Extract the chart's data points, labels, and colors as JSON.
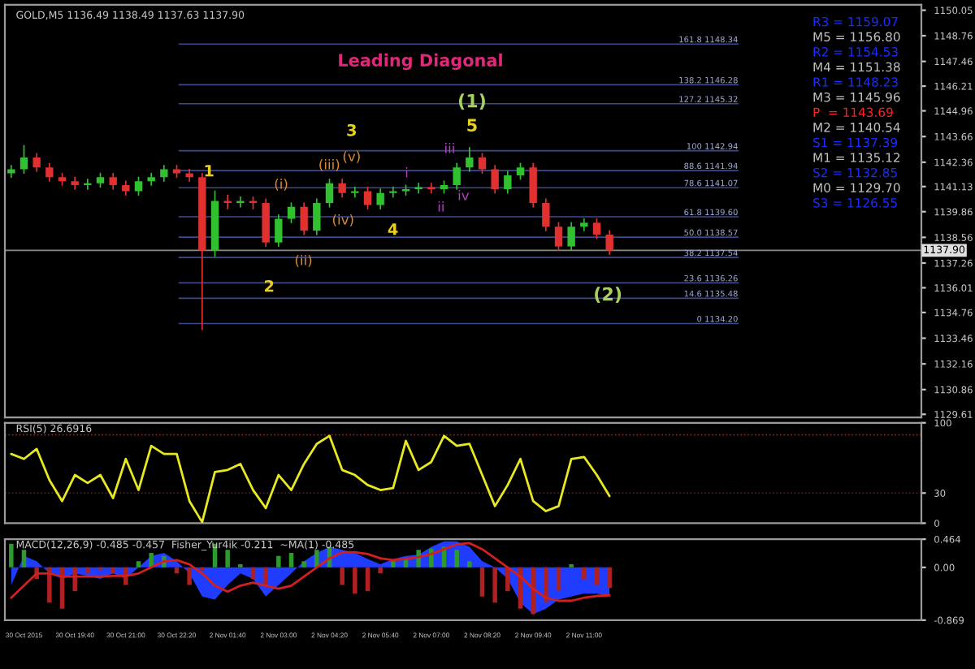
{
  "chart_data": [
    {
      "type": "candlestick",
      "title": "GOLD,M5 1136.49 1138.49 1137.63 1137.90",
      "categories": [
        null,
        null,
        null,
        null,
        null,
        null,
        null,
        null,
        null,
        null,
        null,
        null,
        null,
        null,
        null,
        null,
        null,
        null,
        null,
        null,
        null,
        null,
        null,
        null,
        null,
        null,
        null,
        null,
        null,
        null,
        null,
        null,
        null,
        null,
        null,
        null,
        null,
        null,
        null,
        null,
        null,
        null,
        null,
        null,
        null,
        null,
        null,
        null,
        null,
        null,
        null,
        null,
        null,
        null,
        null,
        null,
        null,
        null,
        null,
        null,
        null,
        null,
        null,
        null,
        null,
        null,
        null,
        null,
        null,
        null,
        null,
        null
      ],
      "tick_labels": "y",
      "ohlc": [
        [
          1141.8,
          1142.2,
          1141.6,
          1142.0
        ],
        [
          1142.0,
          1143.2,
          1141.8,
          1142.6
        ],
        [
          1142.6,
          1142.8,
          1141.9,
          1142.1
        ],
        [
          1142.1,
          1142.3,
          1141.4,
          1141.6
        ],
        [
          1141.6,
          1141.8,
          1141.2,
          1141.4
        ],
        [
          1141.4,
          1141.6,
          1141.0,
          1141.2
        ],
        [
          1141.2,
          1141.5,
          1141.0,
          1141.3
        ],
        [
          1141.3,
          1141.8,
          1141.1,
          1141.6
        ],
        [
          1141.6,
          1141.8,
          1141.0,
          1141.2
        ],
        [
          1141.2,
          1141.4,
          1140.7,
          1140.9
        ],
        [
          1140.9,
          1141.6,
          1140.7,
          1141.4
        ],
        [
          1141.4,
          1141.8,
          1141.2,
          1141.6
        ],
        [
          1141.6,
          1142.2,
          1141.4,
          1142.0
        ],
        [
          1142.0,
          1142.2,
          1141.6,
          1141.8
        ],
        [
          1141.8,
          1142.0,
          1141.4,
          1141.6
        ],
        [
          1141.6,
          1141.8,
          1133.9,
          1137.9
        ],
        [
          1137.9,
          1140.9,
          1137.6,
          1140.4
        ],
        [
          1140.4,
          1140.7,
          1140.0,
          1140.3
        ],
        [
          1140.3,
          1140.6,
          1140.1,
          1140.4
        ],
        [
          1140.4,
          1140.6,
          1140.0,
          1140.3
        ],
        [
          1140.3,
          1140.5,
          1138.1,
          1138.3
        ],
        [
          1138.3,
          1139.7,
          1138.1,
          1139.5
        ],
        [
          1139.5,
          1140.3,
          1139.3,
          1140.1
        ],
        [
          1140.1,
          1140.3,
          1138.7,
          1138.9
        ],
        [
          1138.9,
          1140.5,
          1138.7,
          1140.3
        ],
        [
          1140.3,
          1141.5,
          1140.1,
          1141.3
        ],
        [
          1141.3,
          1141.5,
          1140.6,
          1140.8
        ],
        [
          1140.8,
          1141.1,
          1140.6,
          1140.9
        ],
        [
          1140.9,
          1141.1,
          1140.0,
          1140.2
        ],
        [
          1140.2,
          1141.0,
          1140.0,
          1140.8
        ],
        [
          1140.8,
          1141.1,
          1140.6,
          1140.9
        ],
        [
          1140.9,
          1141.2,
          1140.7,
          1141.0
        ],
        [
          1141.0,
          1141.3,
          1140.8,
          1141.1
        ],
        [
          1141.1,
          1141.3,
          1140.8,
          1141.0
        ],
        [
          1141.0,
          1141.4,
          1140.8,
          1141.2
        ],
        [
          1141.2,
          1142.3,
          1141.0,
          1142.1
        ],
        [
          1142.1,
          1143.1,
          1141.9,
          1142.6
        ],
        [
          1142.6,
          1142.8,
          1141.8,
          1142.0
        ],
        [
          1142.0,
          1142.2,
          1140.8,
          1141.0
        ],
        [
          1141.0,
          1141.9,
          1140.8,
          1141.7
        ],
        [
          1141.7,
          1142.3,
          1141.5,
          1142.1
        ],
        [
          1142.1,
          1142.3,
          1140.1,
          1140.3
        ],
        [
          1140.3,
          1140.5,
          1138.9,
          1139.1
        ],
        [
          1139.1,
          1139.3,
          1137.9,
          1138.1
        ],
        [
          1138.1,
          1139.3,
          1137.9,
          1139.1
        ],
        [
          1139.1,
          1139.5,
          1138.9,
          1139.3
        ],
        [
          1139.3,
          1139.5,
          1138.5,
          1138.7
        ],
        [
          1138.7,
          1138.9,
          1137.7,
          1137.9
        ],
        null,
        null,
        null,
        null,
        null,
        null,
        null,
        null,
        null,
        null,
        null,
        null,
        null,
        null,
        null,
        null,
        null,
        null,
        null,
        null,
        null,
        null,
        null,
        null
      ],
      "ylim": [
        1129.45,
        1150.33
      ],
      "yticks": [
        1129.61,
        1130.86,
        1132.16,
        1133.46,
        1134.76,
        1136.01,
        1137.26,
        1138.56,
        1139.86,
        1141.13,
        1142.36,
        1143.66,
        1144.96,
        1146.21,
        1147.46,
        1148.76,
        1150.05
      ],
      "ref_lines": [
        {
          "axis": "y",
          "value": 1148.34,
          "label": "161.8 1148.34",
          "color": "#3c4a8c"
        },
        {
          "axis": "y",
          "value": 1146.28,
          "label": "138.2 1146.28",
          "color": "#3c4a8c"
        },
        {
          "axis": "y",
          "value": 1145.32,
          "label": "127.2 1145.32",
          "color": "#3c4a8c"
        },
        {
          "axis": "y",
          "value": 1142.94,
          "label": "100 1142.94",
          "color": "#3c4a8c"
        },
        {
          "axis": "y",
          "value": 1141.94,
          "label": "88.6 1141.94",
          "color": "#3c4a8c"
        },
        {
          "axis": "y",
          "value": 1141.07,
          "label": "78.6 1141.07",
          "color": "#3c4a8c"
        },
        {
          "axis": "y",
          "value": 1139.6,
          "label": "61.8 1139.60",
          "color": "#3c4a8c"
        },
        {
          "axis": "y",
          "value": 1138.57,
          "label": "50.0 1138.57",
          "color": "#3c4a8c"
        },
        {
          "axis": "y",
          "value": 1137.54,
          "label": "38.2 1137.54",
          "color": "#3c4a8c"
        },
        {
          "axis": "y",
          "value": 1136.26,
          "label": "23.6 1136.26",
          "color": "#3c4a8c"
        },
        {
          "axis": "y",
          "value": 1135.48,
          "label": "14.6 1135.48",
          "color": "#3c4a8c"
        },
        {
          "axis": "y",
          "value": 1134.2,
          "label": "0 1134.20",
          "color": "#3c4a8c"
        },
        {
          "axis": "y",
          "value": 1137.9,
          "label": "1137.90",
          "color": "#8a8a8a"
        }
      ],
      "annotations": [
        "Leading Diagonal",
        "(1)",
        "5",
        "3",
        "1",
        "2",
        "4",
        "(2)",
        "(i)",
        "(ii)",
        "(iii)",
        "(iv)",
        "(v)",
        "i",
        "ii",
        "iii",
        "iv",
        "R3 = 1159.07",
        "M5 = 1156.80",
        "R2 = 1154.53",
        "M4 = 1151.38",
        "R1 = 1148.23",
        "M3 = 1145.96",
        "P  = 1143.69",
        "M2 = 1140.54",
        "S1 = 1137.39",
        "M1 = 1135.12",
        "S2 = 1132.85",
        "M0 = 1129.70",
        "S3 = 1126.55"
      ]
    },
    {
      "type": "line",
      "title": "RSI(5) 26.6916",
      "categories": [
        null,
        null,
        null,
        null,
        null,
        null,
        null,
        null,
        null,
        null,
        null,
        null,
        null,
        null,
        null,
        null,
        null,
        null,
        null,
        null,
        null,
        null,
        null,
        null,
        null,
        null,
        null,
        null,
        null,
        null,
        null,
        null,
        null,
        null,
        null,
        null,
        null,
        null,
        null,
        null,
        null,
        null,
        null,
        null,
        null,
        null,
        null,
        null,
        null,
        null,
        null,
        null,
        null,
        null,
        null,
        null,
        null,
        null,
        null,
        null,
        null,
        null,
        null,
        null,
        null,
        null,
        null,
        null,
        null,
        null,
        null,
        null
      ],
      "tick_labels": "y",
      "series": [
        {
          "color": "#e8e820",
          "values": [
            69,
            64,
            74,
            43,
            22,
            48,
            40,
            48,
            25,
            64,
            33,
            77,
            69,
            69,
            22,
            1,
            51,
            53,
            59,
            33,
            15,
            48,
            33,
            59,
            79,
            87,
            53,
            48,
            38,
            33,
            35,
            82,
            53,
            61,
            87,
            77,
            79,
            48,
            17,
            38,
            64,
            22,
            12,
            17,
            64,
            66,
            48,
            27,
            null,
            null,
            null,
            null,
            null,
            null,
            null,
            null,
            null,
            null,
            null,
            null,
            null,
            null,
            null,
            null,
            null,
            null,
            null,
            null,
            null,
            null,
            null,
            null
          ]
        }
      ],
      "ylim": [
        0,
        100
      ],
      "yticks": [
        0,
        30,
        100
      ],
      "ref_lines": [
        {
          "axis": "y",
          "value": 88,
          "color": "#a02020",
          "line_style": "dotted"
        },
        {
          "axis": "y",
          "value": 30,
          "color": "#6a2020",
          "line_style": "dotted"
        }
      ]
    },
    {
      "type": "bar",
      "title": "MACD(12,26,9) -0.485 -0.457  Fisher_Yur4ik -0.211  ~MA(1) -0.485",
      "categories": [
        null,
        "30 Oct 2015",
        null,
        null,
        null,
        "30 Oct 19:40",
        null,
        null,
        null,
        "30 Oct 21:00",
        null,
        null,
        null,
        "30 Oct 22:20",
        null,
        null,
        null,
        "2 Nov 01:40",
        null,
        null,
        null,
        "2 Nov 03:00",
        null,
        null,
        null,
        "2 Nov 04:20",
        null,
        null,
        null,
        "2 Nov 05:40",
        null,
        null,
        null,
        "2 Nov 07:00",
        null,
        null,
        null,
        "2 Nov 08:20",
        null,
        null,
        null,
        "2 Nov 09:40",
        null,
        null,
        null,
        "2 Nov 11:00",
        null,
        null,
        null,
        null,
        null,
        null,
        null,
        null,
        null,
        null,
        null,
        null,
        null,
        null,
        null,
        null,
        null,
        null,
        null,
        null,
        null,
        null,
        null,
        null,
        null,
        null
      ],
      "series": [
        {
          "type": "area",
          "color": "#1f3cff",
          "values": [
            -0.29,
            0.19,
            0.1,
            -0.1,
            -0.19,
            -0.1,
            -0.14,
            -0.19,
            -0.1,
            -0.19,
            0.0,
            0.19,
            0.24,
            0.1,
            -0.1,
            -0.48,
            -0.53,
            -0.29,
            -0.1,
            -0.19,
            -0.48,
            -0.29,
            -0.1,
            0.1,
            0.24,
            0.34,
            0.29,
            0.24,
            0.14,
            0.05,
            0.14,
            0.19,
            0.21,
            0.34,
            0.43,
            0.43,
            0.34,
            0.1,
            0.0,
            -0.19,
            -0.58,
            -0.77,
            -0.68,
            -0.53,
            -0.48,
            -0.43,
            -0.43,
            -0.48,
            null,
            null,
            null,
            null,
            null,
            null,
            null,
            null,
            null,
            null,
            null,
            null,
            null,
            null,
            null,
            null,
            null,
            null,
            null,
            null,
            null,
            null,
            null,
            null
          ]
        },
        {
          "type": "bar",
          "values": [
            0.39,
            0.29,
            -0.19,
            -0.58,
            -0.68,
            -0.39,
            -0.1,
            -0.05,
            -0.1,
            -0.29,
            0.1,
            0.24,
            0.19,
            -0.1,
            -0.29,
            -0.05,
            0.39,
            0.29,
            0.05,
            -0.19,
            -0.29,
            0.19,
            0.24,
            0.1,
            0.29,
            0.34,
            -0.29,
            -0.43,
            -0.39,
            -0.1,
            0.1,
            0.14,
            0.29,
            0.31,
            0.34,
            0.29,
            0.1,
            -0.48,
            -0.58,
            -0.39,
            -0.68,
            -0.77,
            -0.58,
            -0.39,
            0.05,
            -0.19,
            -0.29,
            -0.34,
            null,
            null,
            null,
            null,
            null,
            null,
            null,
            null,
            null,
            null,
            null,
            null,
            null,
            null,
            null,
            null,
            null,
            null,
            null,
            null,
            null,
            null,
            null,
            null
          ],
          "colors": [
            "#2e9a2e",
            "#2e9a2e",
            "#b02020",
            "#b02020",
            "#b02020",
            "#b02020",
            "#b02020",
            "#b02020",
            "#b02020",
            "#b02020",
            "#2e9a2e",
            "#2e9a2e",
            "#2e9a2e",
            "#b02020",
            "#b02020",
            "#b02020",
            "#2e9a2e",
            "#2e9a2e",
            "#2e9a2e",
            "#b02020",
            "#b02020",
            "#2e9a2e",
            "#2e9a2e",
            "#2e9a2e",
            "#2e9a2e",
            "#2e9a2e",
            "#b02020",
            "#b02020",
            "#b02020",
            "#b02020",
            "#2e9a2e",
            "#2e9a2e",
            "#2e9a2e",
            "#2e9a2e",
            "#2e9a2e",
            "#2e9a2e",
            "#2e9a2e",
            "#b02020",
            "#b02020",
            "#b02020",
            "#b02020",
            "#b02020",
            "#b02020",
            "#b02020",
            "#2e9a2e",
            "#b02020",
            "#b02020",
            "#b02020",
            null,
            null,
            null,
            null,
            null,
            null,
            null,
            null,
            null,
            null,
            null,
            null,
            null,
            null,
            null,
            null,
            null,
            null,
            null,
            null,
            null,
            null,
            null,
            null
          ]
        },
        {
          "type": "line",
          "color": "#d02020",
          "values": [
            -0.5,
            -0.3,
            -0.1,
            -0.1,
            -0.15,
            -0.15,
            -0.15,
            -0.15,
            -0.14,
            -0.14,
            -0.1,
            0.0,
            0.1,
            0.12,
            0.05,
            -0.1,
            -0.3,
            -0.4,
            -0.3,
            -0.25,
            -0.3,
            -0.35,
            -0.3,
            -0.15,
            0.0,
            0.15,
            0.25,
            0.25,
            0.22,
            0.15,
            0.12,
            0.14,
            0.17,
            0.22,
            0.3,
            0.38,
            0.4,
            0.3,
            0.15,
            0.0,
            -0.15,
            -0.35,
            -0.5,
            -0.55,
            -0.55,
            -0.5,
            -0.47,
            -0.46,
            null,
            null,
            null,
            null,
            null,
            null,
            null,
            null,
            null,
            null,
            null,
            null,
            null,
            null,
            null,
            null,
            null,
            null,
            null,
            null,
            null,
            null,
            null,
            null
          ]
        }
      ],
      "ylim": [
        -0.869,
        0.464
      ],
      "yticks": [
        -0.869,
        {
          "value": 0,
          "label": "0.00"
        },
        0.464
      ]
    }
  ]
}
